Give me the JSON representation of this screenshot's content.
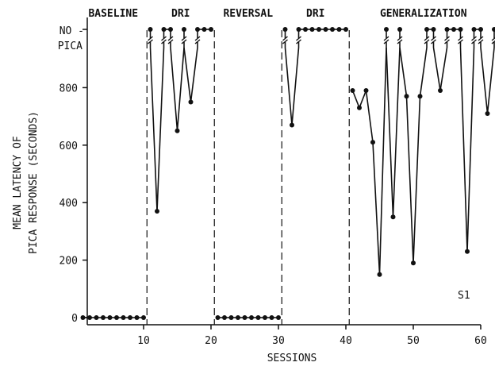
{
  "chart_data": {
    "type": "line",
    "subject_label": "S1",
    "xlabel": "SESSIONS",
    "ylabel": [
      "MEAN LATENCY OF",
      "PICA RESPONSE (SECONDS)"
    ],
    "xlim": [
      0,
      70
    ],
    "ylim": [
      0,
      900
    ],
    "x_ticks": [
      10,
      20,
      30,
      40,
      50,
      60
    ],
    "y_ticks": [
      0,
      200,
      400,
      600,
      800
    ],
    "no_pica_label": [
      "NO -",
      "PICA"
    ],
    "no_pica_value": "no pica",
    "phases": [
      {
        "label": "BASELINE",
        "start": 1,
        "end": 10
      },
      {
        "label": "DRI",
        "start": 11,
        "end": 20
      },
      {
        "label": "REVERSAL",
        "start": 21,
        "end": 30
      },
      {
        "label": "DRI",
        "start": 31,
        "end": 40
      },
      {
        "label": "GENERALIZATION",
        "start": 41,
        "end": 62
      }
    ],
    "phase_lines": [
      10.5,
      20.5,
      30.5,
      40.5
    ],
    "series": [
      {
        "points": [
          {
            "x": 1,
            "y": 0
          },
          {
            "x": 2,
            "y": 0
          },
          {
            "x": 3,
            "y": 0
          },
          {
            "x": 4,
            "y": 0
          },
          {
            "x": 5,
            "y": 0
          },
          {
            "x": 6,
            "y": 0
          },
          {
            "x": 7,
            "y": 0
          },
          {
            "x": 8,
            "y": 0
          },
          {
            "x": 9,
            "y": 0
          },
          {
            "x": 10,
            "y": 0
          },
          {
            "x": 11,
            "y": "no pica"
          },
          {
            "x": 12,
            "y": 370
          },
          {
            "x": 13,
            "y": "no pica"
          },
          {
            "x": 14,
            "y": "no pica"
          },
          {
            "x": 15,
            "y": 650
          },
          {
            "x": 16,
            "y": "no pica"
          },
          {
            "x": 17,
            "y": 750
          },
          {
            "x": 18,
            "y": "no pica"
          },
          {
            "x": 19,
            "y": "no pica"
          },
          {
            "x": 20,
            "y": "no pica"
          },
          {
            "x": 21,
            "y": 0
          },
          {
            "x": 22,
            "y": 0
          },
          {
            "x": 23,
            "y": 0
          },
          {
            "x": 24,
            "y": 0
          },
          {
            "x": 25,
            "y": 0
          },
          {
            "x": 26,
            "y": 0
          },
          {
            "x": 27,
            "y": 0
          },
          {
            "x": 28,
            "y": 0
          },
          {
            "x": 29,
            "y": 0
          },
          {
            "x": 30,
            "y": 0
          },
          {
            "x": 31,
            "y": "no pica"
          },
          {
            "x": 32,
            "y": 670
          },
          {
            "x": 33,
            "y": "no pica"
          },
          {
            "x": 34,
            "y": "no pica"
          },
          {
            "x": 35,
            "y": "no pica"
          },
          {
            "x": 36,
            "y": "no pica"
          },
          {
            "x": 37,
            "y": "no pica"
          },
          {
            "x": 38,
            "y": "no pica"
          },
          {
            "x": 39,
            "y": "no pica"
          },
          {
            "x": 40,
            "y": "no pica"
          },
          {
            "x": 41,
            "y": 790
          },
          {
            "x": 42,
            "y": 730
          },
          {
            "x": 43,
            "y": 790
          },
          {
            "x": 44,
            "y": 610
          },
          {
            "x": 45,
            "y": 150
          },
          {
            "x": 46,
            "y": "no pica"
          },
          {
            "x": 47,
            "y": 350
          },
          {
            "x": 48,
            "y": "no pica"
          },
          {
            "x": 49,
            "y": 770
          },
          {
            "x": 50,
            "y": 190
          },
          {
            "x": 51,
            "y": 770
          },
          {
            "x": 52,
            "y": "no pica"
          },
          {
            "x": 53,
            "y": "no pica"
          },
          {
            "x": 54,
            "y": 790
          },
          {
            "x": 55,
            "y": "no pica"
          },
          {
            "x": 56,
            "y": "no pica"
          },
          {
            "x": 57,
            "y": "no pica"
          },
          {
            "x": 58,
            "y": 230
          },
          {
            "x": 59,
            "y": "no pica"
          },
          {
            "x": 60,
            "y": "no pica"
          },
          {
            "x": 61,
            "y": 710
          },
          {
            "x": 62,
            "y": "no pica"
          }
        ]
      }
    ],
    "grid": false,
    "legend": "none"
  }
}
